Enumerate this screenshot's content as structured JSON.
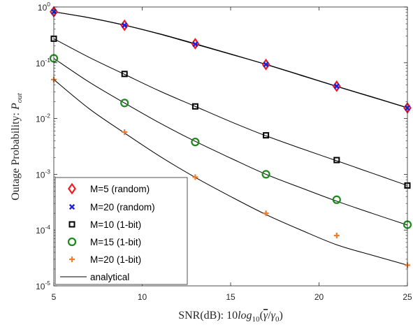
{
  "chart_data": {
    "type": "line",
    "xlabel": "SNR(dB): 10log10(γ̄/γ0)",
    "xlabel_parts": {
      "main": "SNR(dB): 10",
      "log": "log",
      "sub": "10",
      "open": "(",
      "gamma_bar": "γ",
      "slash": "/",
      "gamma0": "γ",
      "zero": "0",
      "close": ")"
    },
    "ylabel": "Outage Probability: P_out",
    "ylabel_parts": {
      "main": "Outage Probability: ",
      "P": "P",
      "sub": "out"
    },
    "xlim": [
      5,
      25
    ],
    "ylim": [
      1e-05,
      1
    ],
    "yscale": "log",
    "x_ticks": [
      5,
      10,
      15,
      20,
      25
    ],
    "x_tick_labels": [
      "5",
      "10",
      "15",
      "20",
      "25"
    ],
    "y_ticks": [
      {
        "exp": 0,
        "base": "10",
        "sup": "0"
      },
      {
        "exp": -1,
        "base": "10",
        "sup": "-1"
      },
      {
        "exp": -2,
        "base": "10",
        "sup": "-2"
      },
      {
        "exp": -3,
        "base": "10",
        "sup": "-3"
      },
      {
        "exp": -4,
        "base": "10",
        "sup": "-4"
      },
      {
        "exp": -5,
        "base": "10",
        "sup": "-5"
      }
    ],
    "grid": false,
    "legend_position": "bottom-left",
    "colors": {
      "random_m5": "#ee1c25",
      "random_m20": "#1f1fdd",
      "onebit_m10": "#000000",
      "onebit_m15": "#1a8a1a",
      "onebit_m20": "#ed7d31",
      "analytical": "#000000"
    },
    "series": [
      {
        "name": "M=5 (random)",
        "marker": "diamond",
        "color_key": "random_m5",
        "x": [
          5,
          9,
          13,
          17,
          21,
          25
        ],
        "y": [
          0.82,
          0.47,
          0.22,
          0.093,
          0.038,
          0.0155
        ]
      },
      {
        "name": "M=20 (random)",
        "marker": "x",
        "color_key": "random_m20",
        "x": [
          5,
          9,
          13,
          17,
          21,
          25
        ],
        "y": [
          0.82,
          0.47,
          0.215,
          0.093,
          0.038,
          0.0155
        ]
      },
      {
        "name": "M=10 (1-bit)",
        "marker": "square",
        "color_key": "onebit_m10",
        "x": [
          5,
          9,
          13,
          17,
          21,
          25
        ],
        "y": [
          0.27,
          0.063,
          0.0165,
          0.005,
          0.0018,
          0.00063
        ]
      },
      {
        "name": "M=15  (1-bit)",
        "marker": "circle",
        "color_key": "onebit_m15",
        "x": [
          5,
          9,
          13,
          17,
          21,
          25
        ],
        "y": [
          0.12,
          0.019,
          0.0038,
          0.001,
          0.00035,
          0.000125
        ]
      },
      {
        "name": "M=20  (1-bit)",
        "marker": "plus",
        "color_key": "onebit_m20",
        "x": [
          5,
          9,
          13,
          17,
          21,
          25
        ],
        "y": [
          0.05,
          0.0057,
          0.00089,
          0.0002,
          8e-05,
          2.35e-05
        ]
      },
      {
        "name": "analytical",
        "marker": "none",
        "color_key": "analytical"
      }
    ],
    "analytical_curves": [
      {
        "x": [
          5,
          7,
          9,
          11,
          13,
          15,
          17,
          19,
          21,
          23,
          25
        ],
        "y": [
          0.82,
          0.64,
          0.47,
          0.325,
          0.215,
          0.142,
          0.093,
          0.059,
          0.0375,
          0.0242,
          0.0155
        ]
      },
      {
        "x": [
          5,
          7,
          9,
          11,
          13,
          15,
          17,
          19,
          21,
          23,
          25
        ],
        "y": [
          0.82,
          0.645,
          0.475,
          0.33,
          0.22,
          0.144,
          0.094,
          0.06,
          0.038,
          0.0245,
          0.0157
        ]
      },
      {
        "x": [
          5,
          7,
          9,
          11,
          13,
          15,
          17,
          19,
          21,
          23,
          25
        ],
        "y": [
          0.27,
          0.125,
          0.062,
          0.031,
          0.0165,
          0.0088,
          0.0049,
          0.0029,
          0.00175,
          0.00105,
          0.00063
        ]
      },
      {
        "x": [
          5,
          7,
          9,
          11,
          13,
          15,
          17,
          19,
          21,
          23,
          25
        ],
        "y": [
          0.12,
          0.045,
          0.019,
          0.0083,
          0.0039,
          0.00195,
          0.001,
          0.00057,
          0.00033,
          0.0002,
          0.000123
        ]
      },
      {
        "x": [
          5,
          7,
          9,
          11,
          13,
          15,
          17,
          19,
          21,
          23,
          25
        ],
        "y": [
          0.05,
          0.015,
          0.0055,
          0.0021,
          0.00088,
          0.0004,
          0.00019,
          9.95e-05,
          5.45e-05,
          3.55e-05,
          2.35e-05
        ]
      }
    ]
  }
}
